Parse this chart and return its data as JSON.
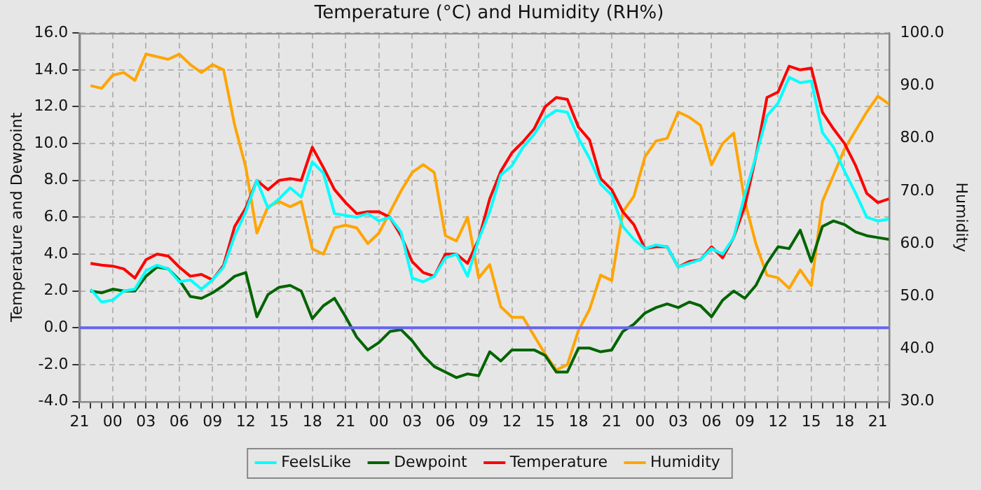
{
  "chart_data": {
    "type": "line",
    "title": "Temperature (°C) and Humidity (RH%)",
    "ylabel": "Temperature and Dewpoint",
    "y2label": "Humidity",
    "categories": [
      "21",
      null,
      null,
      "00",
      null,
      null,
      "03",
      null,
      null,
      "06",
      null,
      null,
      "09",
      null,
      null,
      "12",
      null,
      null,
      "15",
      null,
      null,
      "18",
      null,
      null,
      "21",
      null,
      null,
      "00",
      null,
      null,
      "03",
      null,
      null,
      "06",
      null,
      null,
      "09",
      null,
      null,
      "12",
      null,
      null,
      "15",
      null,
      null,
      "18",
      null,
      null,
      "21",
      null,
      null,
      "00",
      null,
      null,
      "03",
      null,
      null,
      "06",
      null,
      null,
      "09",
      null,
      null,
      "12",
      null,
      null,
      "15",
      null,
      null,
      "18",
      null,
      null,
      "21",
      null
    ],
    "ylim": [
      -4,
      16
    ],
    "yticks": [
      {
        "value": -4,
        "label": "-4.0"
      },
      {
        "value": -2,
        "label": "-2.0"
      },
      {
        "value": 0,
        "label": "0.0"
      },
      {
        "value": 2,
        "label": "2.0"
      },
      {
        "value": 4,
        "label": "4.0"
      },
      {
        "value": 6,
        "label": "6.0"
      },
      {
        "value": 8,
        "label": "8.0"
      },
      {
        "value": 10,
        "label": "10.0"
      },
      {
        "value": 12,
        "label": "12.0"
      },
      {
        "value": 14,
        "label": "14.0"
      },
      {
        "value": 16,
        "label": "16.0"
      }
    ],
    "y2lim": [
      30,
      100
    ],
    "y2ticks": [
      {
        "value": 30,
        "label": "30.0"
      },
      {
        "value": 40,
        "label": "40.0"
      },
      {
        "value": 50,
        "label": "50.0"
      },
      {
        "value": 60,
        "label": "60.0"
      },
      {
        "value": 70,
        "label": "70.0"
      },
      {
        "value": 80,
        "label": "80.0"
      },
      {
        "value": 90,
        "label": "90.0"
      },
      {
        "value": 100,
        "label": "100.0"
      }
    ],
    "grid": true,
    "legend": "bottom",
    "marker": "none",
    "line_style": "solid",
    "ref_lines": [
      {
        "axis": "y",
        "value": 0,
        "color": "#6666ee"
      }
    ],
    "series": [
      {
        "name": "FeelsLike",
        "color": "#00ffff",
        "values": [
          null,
          2.1,
          1.4,
          1.5,
          2.0,
          2.1,
          3.1,
          3.4,
          3.2,
          2.5,
          2.6,
          2.1,
          2.6,
          3.3,
          5.0,
          6.3,
          8.0,
          6.5,
          7.0,
          7.6,
          7.1,
          9.0,
          8.4,
          6.2,
          6.1,
          6.0,
          6.2,
          5.8,
          6.0,
          5.2,
          2.7,
          2.5,
          2.8,
          3.8,
          4.0,
          2.8,
          4.8,
          6.3,
          8.3,
          8.8,
          9.8,
          10.5,
          11.4,
          11.8,
          11.7,
          10.3,
          9.2,
          7.8,
          7.2,
          5.5,
          4.8,
          4.3,
          4.5,
          4.4,
          3.3,
          3.5,
          3.7,
          4.3,
          4.0,
          4.9,
          7.2,
          9.3,
          11.5,
          12.2,
          13.6,
          13.3,
          13.4,
          10.6,
          9.8,
          8.5,
          7.3,
          6.0,
          5.8,
          5.9
        ]
      },
      {
        "name": "Dewpoint",
        "color": "#006400",
        "values": [
          null,
          2.0,
          1.9,
          2.1,
          2.0,
          2.0,
          2.8,
          3.3,
          3.2,
          2.6,
          1.7,
          1.6,
          1.9,
          2.3,
          2.8,
          3.0,
          0.6,
          1.8,
          2.2,
          2.3,
          2.0,
          0.5,
          1.2,
          1.6,
          0.6,
          -0.5,
          -1.2,
          -0.8,
          -0.2,
          -0.1,
          -0.7,
          -1.5,
          -2.1,
          -2.4,
          -2.7,
          -2.5,
          -2.6,
          -1.3,
          -1.8,
          -1.2,
          -1.2,
          -1.2,
          -1.5,
          -2.4,
          -2.4,
          -1.1,
          -1.1,
          -1.3,
          -1.2,
          -0.2,
          0.2,
          0.8,
          1.1,
          1.3,
          1.1,
          1.4,
          1.2,
          0.6,
          1.5,
          2.0,
          1.6,
          2.3,
          3.5,
          4.4,
          4.3,
          5.3,
          3.6,
          5.5,
          5.8,
          5.6,
          5.2,
          5.0,
          4.9,
          4.8
        ]
      },
      {
        "name": "Temperature",
        "color": "#ff0000",
        "values": [
          null,
          3.5,
          3.4,
          3.35,
          3.2,
          2.7,
          3.7,
          4.0,
          3.9,
          3.3,
          2.8,
          2.9,
          2.6,
          3.4,
          5.5,
          6.5,
          8.0,
          7.5,
          8.0,
          8.1,
          8.0,
          9.8,
          8.7,
          7.5,
          6.8,
          6.2,
          6.3,
          6.3,
          6.0,
          5.0,
          3.6,
          3.0,
          2.8,
          4.0,
          4.0,
          3.5,
          4.8,
          7.0,
          8.5,
          9.5,
          10.1,
          10.8,
          12.0,
          12.5,
          12.4,
          10.9,
          10.2,
          8.1,
          7.5,
          6.3,
          5.6,
          4.3,
          4.4,
          4.4,
          3.3,
          3.6,
          3.7,
          4.4,
          3.8,
          4.9,
          6.6,
          9.3,
          12.5,
          12.8,
          14.2,
          14.0,
          14.1,
          11.7,
          10.8,
          10.0,
          8.8,
          7.3,
          6.8,
          7.0
        ]
      },
      {
        "name": "Humidity",
        "color": "#ffa500",
        "axis": "y2",
        "values": [
          null,
          90,
          89.5,
          92,
          92.5,
          91,
          96,
          95.5,
          95,
          96,
          94,
          92.5,
          94,
          93,
          82.5,
          74.5,
          62,
          67,
          68,
          67,
          68,
          59,
          58,
          63,
          63.5,
          63,
          60,
          62,
          66,
          70,
          73.5,
          75,
          73.5,
          61.5,
          60.5,
          65,
          53.5,
          56,
          48,
          46,
          46,
          42.5,
          39,
          36,
          37,
          43.5,
          47.5,
          54,
          53,
          66,
          69,
          76.5,
          79.5,
          80,
          85,
          84,
          82.5,
          75,
          79,
          81,
          68,
          60,
          54,
          53.5,
          51.5,
          55,
          52,
          68,
          73,
          78,
          81.5,
          85,
          88,
          86.5
        ]
      }
    ]
  }
}
